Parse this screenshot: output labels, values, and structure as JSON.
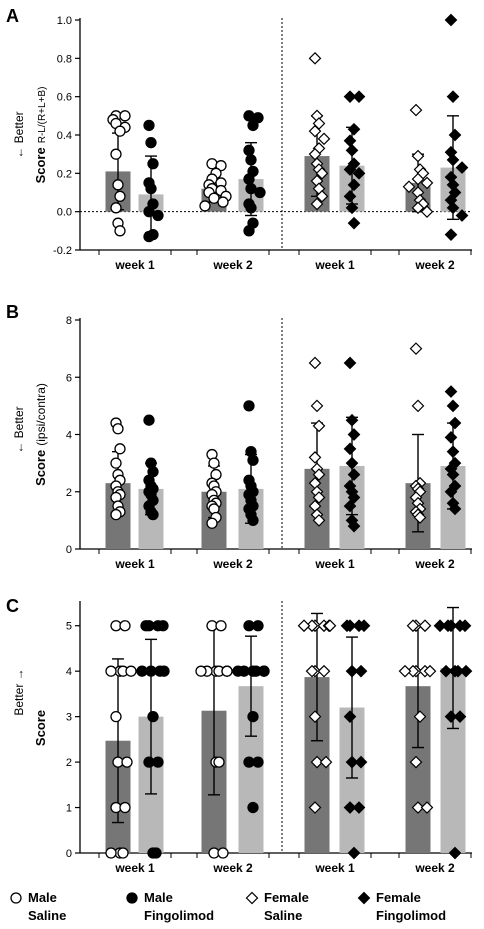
{
  "colors": {
    "male_saline_bar": "#767676",
    "male_fingolimod_bar": "#b8b8b8",
    "female_saline_bar": "#767676",
    "female_fingolimod_bar": "#b8b8b8",
    "marker_stroke": "#000000"
  },
  "legend": {
    "items": [
      {
        "line1": "Male",
        "line2": "Saline",
        "marker": "open-circle"
      },
      {
        "line1": "Male",
        "line2": "Fingolimod",
        "marker": "filled-circle"
      },
      {
        "line1": "Female",
        "line2": "Saline",
        "marker": "open-diamond"
      },
      {
        "line1": "Female",
        "line2": "Fingolimod",
        "marker": "filled-diamond"
      }
    ]
  },
  "chart_data": [
    {
      "panel": "A",
      "type": "bar",
      "ylabel_main": "Score",
      "ylabel_sub": "R-L/(R+L+B)",
      "side_label": "← Better",
      "ylim": [
        -0.2,
        1.0
      ],
      "yticks": [
        "-0.2",
        "0.0",
        "0.2",
        "0.4",
        "0.6",
        "0.8",
        "1.0"
      ],
      "ytick_values": [
        -0.2,
        0.0,
        0.2,
        0.4,
        0.6,
        0.8,
        1.0
      ],
      "zero_line": true,
      "categories": [
        "week 1",
        "week 2",
        "week 1",
        "week 2"
      ],
      "series": [
        {
          "group": "Male Saline",
          "means": [
            0.21,
            0.12
          ],
          "sd": [
            0.2,
            0.07
          ],
          "points": [
            [
              0.5,
              0.5,
              0.48,
              0.46,
              0.44,
              0.42,
              0.3,
              0.14,
              0.08,
              0.02,
              -0.06,
              -0.1
            ],
            [
              0.25,
              0.24,
              0.2,
              0.17,
              0.15,
              0.14,
              0.12,
              0.11,
              0.1,
              0.08,
              0.07,
              0.05,
              0.03
            ]
          ]
        },
        {
          "group": "Male Fingolimod",
          "means": [
            0.09,
            0.17
          ],
          "sd": [
            0.2,
            0.19
          ],
          "points": [
            [
              0.45,
              0.36,
              0.25,
              0.15,
              0.12,
              0.04,
              0.0,
              -0.02,
              -0.12,
              -0.13
            ],
            [
              0.5,
              0.49,
              0.45,
              0.32,
              0.27,
              0.21,
              0.17,
              0.12,
              0.1,
              0.04,
              0.02,
              -0.06,
              -0.1
            ]
          ]
        },
        {
          "group": "Female Saline",
          "means": [
            0.29,
            0.15
          ],
          "sd": [
            0.21,
            0.15
          ],
          "points": [
            [
              0.8,
              0.5,
              0.46,
              0.42,
              0.38,
              0.33,
              0.3,
              0.25,
              0.22,
              0.2,
              0.16,
              0.12,
              0.08,
              0.04
            ],
            [
              0.53,
              0.29,
              0.22,
              0.2,
              0.17,
              0.15,
              0.13,
              0.1,
              0.06,
              0.04,
              0.02,
              0.0
            ]
          ]
        },
        {
          "group": "Female Fingolimod",
          "means": [
            0.24,
            0.23
          ],
          "sd": [
            0.2,
            0.27
          ],
          "points": [
            [
              0.6,
              0.6,
              0.43,
              0.37,
              0.32,
              0.25,
              0.22,
              0.2,
              0.14,
              0.08,
              0.02,
              -0.06
            ],
            [
              1.0,
              0.6,
              0.4,
              0.31,
              0.27,
              0.23,
              0.18,
              0.14,
              0.1,
              0.06,
              0.02,
              -0.02,
              -0.12
            ]
          ]
        }
      ]
    },
    {
      "panel": "B",
      "type": "bar",
      "ylabel_main": "Score",
      "ylabel_sub": "(ipsi/contra)",
      "side_label": "← Better",
      "ylim": [
        0,
        8
      ],
      "yticks": [
        "0",
        "2",
        "4",
        "6",
        "8"
      ],
      "ytick_values": [
        0,
        2,
        4,
        6,
        8
      ],
      "zero_line": false,
      "categories": [
        "week 1",
        "week 2",
        "week 1",
        "week 2"
      ],
      "series": [
        {
          "group": "Male Saline",
          "means": [
            2.3,
            2.0
          ],
          "sd": [
            1.1,
            0.9
          ],
          "points": [
            [
              4.4,
              4.2,
              3.5,
              3.0,
              2.6,
              2.4,
              2.2,
              2.0,
              1.9,
              1.8,
              1.5,
              1.3,
              1.2
            ],
            [
              3.3,
              3.0,
              2.6,
              2.3,
              2.2,
              2.0,
              1.9,
              1.7,
              1.6,
              1.5,
              1.4,
              1.1,
              0.9
            ]
          ]
        },
        {
          "group": "Male Fingolimod",
          "means": [
            2.1,
            2.1
          ],
          "sd": [
            0.9,
            1.2
          ],
          "points": [
            [
              4.5,
              3.0,
              2.7,
              2.4,
              2.2,
              2.1,
              2.0,
              1.9,
              1.7,
              1.5,
              1.3,
              1.2
            ],
            [
              5.0,
              3.4,
              3.1,
              2.4,
              2.2,
              2.0,
              1.9,
              1.7,
              1.5,
              1.4,
              1.2,
              1.0
            ]
          ]
        },
        {
          "group": "Female Saline",
          "means": [
            2.8,
            2.3
          ],
          "sd": [
            1.6,
            1.7
          ],
          "points": [
            [
              6.5,
              5.0,
              4.3,
              3.2,
              2.8,
              2.6,
              2.3,
              2.0,
              1.8,
              1.5,
              1.2,
              1.0
            ],
            [
              7.0,
              5.0,
              2.3,
              2.2,
              2.1,
              2.0,
              1.8,
              1.6,
              1.4,
              1.3,
              1.2,
              1.1
            ]
          ]
        },
        {
          "group": "Female Fingolimod",
          "means": [
            2.9,
            2.9
          ],
          "sd": [
            1.7,
            1.5
          ],
          "points": [
            [
              6.5,
              4.5,
              4.0,
              3.5,
              3.0,
              2.6,
              2.2,
              2.0,
              1.8,
              1.5,
              1.0,
              0.8
            ],
            [
              5.5,
              5.0,
              4.4,
              3.9,
              3.4,
              3.0,
              2.8,
              2.6,
              2.2,
              2.0,
              1.6,
              1.4
            ]
          ]
        }
      ]
    },
    {
      "panel": "C",
      "type": "bar",
      "ylabel_main": "Score",
      "ylabel_sub": "",
      "side_label": "Better →",
      "ylim": [
        0,
        5.5
      ],
      "yticks": [
        "0",
        "1",
        "2",
        "3",
        "4",
        "5"
      ],
      "ytick_values": [
        0,
        1,
        2,
        3,
        4,
        5
      ],
      "zero_line": false,
      "categories": [
        "week 1",
        "week 2",
        "week 1",
        "week 2"
      ],
      "series": [
        {
          "group": "Male Saline",
          "means": [
            2.47,
            3.13
          ],
          "sd": [
            1.8,
            1.85
          ],
          "points": [
            [
              5,
              5,
              4,
              4,
              4,
              4,
              3,
              2,
              2,
              1,
              1,
              0,
              0,
              0
            ],
            [
              5,
              5,
              4,
              4,
              4,
              4,
              4,
              4,
              2,
              2,
              0,
              0
            ]
          ]
        },
        {
          "group": "Male Fingolimod",
          "means": [
            3.0,
            3.67
          ],
          "sd": [
            1.7,
            1.1
          ],
          "points": [
            [
              5,
              5,
              5,
              5,
              4,
              4,
              4,
              4,
              3,
              2,
              2,
              0,
              0
            ],
            [
              5,
              5,
              4,
              4,
              4,
              4,
              4,
              4,
              3,
              2,
              2,
              1
            ]
          ]
        },
        {
          "group": "Female Saline",
          "means": [
            3.87,
            3.67
          ],
          "sd": [
            1.4,
            1.35
          ],
          "points": [
            [
              5,
              5,
              5,
              5,
              5,
              5,
              4,
              4,
              4,
              3,
              2,
              2,
              1
            ],
            [
              5,
              5,
              5,
              4,
              4,
              4,
              4,
              4,
              3,
              2,
              1,
              1
            ]
          ]
        },
        {
          "group": "Female Fingolimod",
          "means": [
            3.2,
            4.07
          ],
          "sd": [
            1.55,
            1.33
          ],
          "points": [
            [
              5,
              5,
              5,
              5,
              4,
              4,
              3,
              2,
              2,
              1,
              1,
              0
            ],
            [
              5,
              5,
              5,
              5,
              5,
              4,
              4,
              4,
              4,
              3,
              3,
              0
            ]
          ]
        }
      ]
    }
  ]
}
